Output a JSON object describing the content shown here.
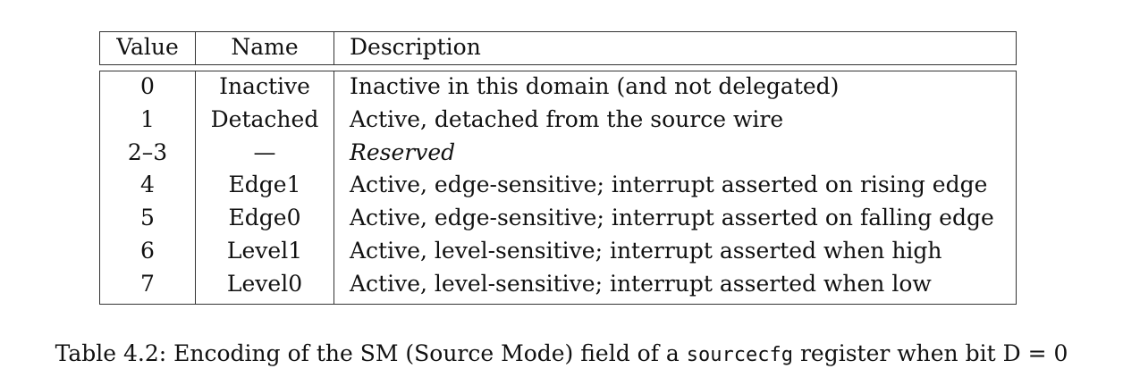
{
  "table": {
    "headers": {
      "value": "Value",
      "name": "Name",
      "description": "Description"
    },
    "rows": [
      {
        "value": "0",
        "name": "Inactive",
        "description": "Inactive in this domain (and not delegated)",
        "italic": false
      },
      {
        "value": "1",
        "name": "Detached",
        "description": "Active, detached from the source wire",
        "italic": false
      },
      {
        "value": "2–3",
        "name": "—",
        "description": "Reserved",
        "italic": true
      },
      {
        "value": "4",
        "name": "Edge1",
        "description": "Active, edge-sensitive; interrupt asserted on rising edge",
        "italic": false
      },
      {
        "value": "5",
        "name": "Edge0",
        "description": "Active, edge-sensitive; interrupt asserted on falling edge",
        "italic": false
      },
      {
        "value": "6",
        "name": "Level1",
        "description": "Active, level-sensitive; interrupt asserted when high",
        "italic": false
      },
      {
        "value": "7",
        "name": "Level0",
        "description": "Active, level-sensitive; interrupt asserted when low",
        "italic": false
      }
    ]
  },
  "caption": {
    "prefix": "Table 4.2: Encoding of the SM (Source Mode) field of a ",
    "code": "sourcecfg",
    "suffix": " register when bit D = 0"
  }
}
